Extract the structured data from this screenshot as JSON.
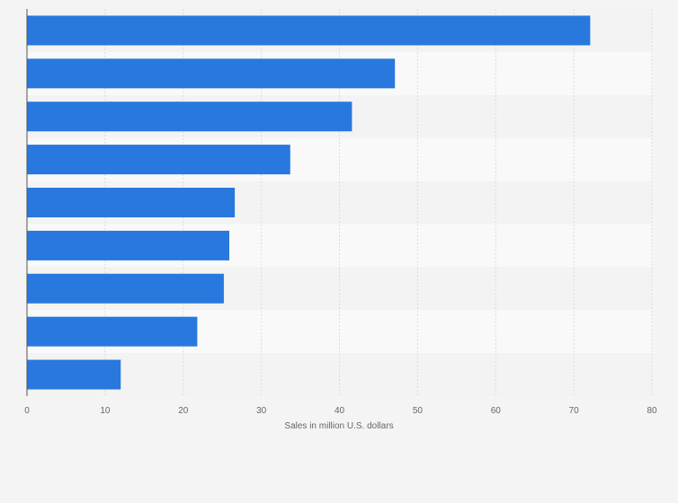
{
  "chart_data": {
    "type": "bar",
    "orientation": "horizontal",
    "categories": [
      "",
      "",
      "",
      "",
      "",
      "",
      "",
      "",
      ""
    ],
    "values": [
      72.1,
      47.1,
      41.6,
      33.7,
      26.6,
      25.9,
      25.2,
      21.8,
      12.0
    ],
    "xlabel": "Sales in million U.S. dollars",
    "ylabel": "",
    "xlim": [
      0,
      80
    ],
    "xticks": [
      "0",
      "10",
      "20",
      "30",
      "40",
      "50",
      "60",
      "70",
      "80"
    ],
    "grid": true,
    "legend": "none",
    "bar_color": "#2878de",
    "band_colors": [
      "#f3f3f3",
      "#f9f9f9"
    ],
    "grid_color": "#dcdcdc",
    "axis_color": "#555555"
  }
}
